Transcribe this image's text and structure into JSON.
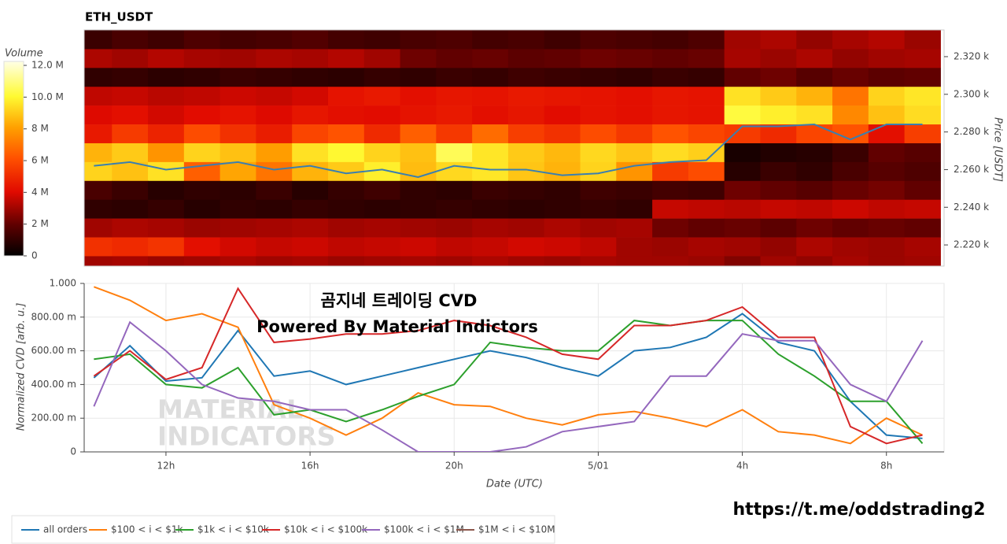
{
  "chart_data": [
    {
      "type": "heatmap",
      "title": "ETH_USDT",
      "ylabel": "Price [USDT]",
      "colorbar_title": "Volume",
      "colormap": "fire",
      "xlim": [
        9.73,
        33.6
      ],
      "ylim": [
        2208.75,
        2334.2
      ],
      "yticks": [
        {
          "value": 2220,
          "label": "2.220 k"
        },
        {
          "value": 2240,
          "label": "2.240 k"
        },
        {
          "value": 2260,
          "label": "2.260 k"
        },
        {
          "value": 2280,
          "label": "2.280 k"
        },
        {
          "value": 2300,
          "label": "2.300 k"
        },
        {
          "value": 2320,
          "label": "2.320 k"
        }
      ],
      "clim": [
        0,
        12250000
      ],
      "cticks": [
        {
          "value": 0,
          "label": "0"
        },
        {
          "value": 2000000,
          "label": "2 M"
        },
        {
          "value": 4000000,
          "label": "4 M"
        },
        {
          "value": 6000000,
          "label": "6 M"
        },
        {
          "value": 8000000,
          "label": "8 M"
        },
        {
          "value": 10000000,
          "label": "10.0 M"
        },
        {
          "value": 12000000,
          "label": "12.0 M"
        }
      ],
      "x": [
        10,
        11,
        12,
        13,
        14,
        15,
        16,
        17,
        18,
        19,
        20,
        21,
        22,
        23,
        24,
        25,
        26,
        27,
        28,
        29,
        30,
        31,
        32,
        33
      ],
      "y": [
        2329,
        2319,
        2309,
        2299,
        2289,
        2279,
        2269,
        2259,
        2249,
        2239,
        2229,
        2219,
        2209
      ],
      "z": [
        [
          1200000,
          1500000,
          1300000,
          1600000,
          1400000,
          1500000,
          1700000,
          1400000,
          1300000,
          1500000,
          1600000,
          1400000,
          1500000,
          1300000,
          1600000,
          1500000,
          1400000,
          1600000,
          3000000,
          3200000,
          2800000,
          3100000,
          3300000,
          2900000
        ],
        [
          3200000,
          3000000,
          3300000,
          3100000,
          3000000,
          3200000,
          3100000,
          3300000,
          3000000,
          2200000,
          2000000,
          2100000,
          1900000,
          2000000,
          2200000,
          2100000,
          2000000,
          2100000,
          3100000,
          2900000,
          3200000,
          2800000,
          3000000,
          3100000
        ],
        [
          1000000,
          1100000,
          900000,
          1000000,
          1200000,
          1100000,
          1000000,
          900000,
          1100000,
          1000000,
          1200000,
          1100000,
          1300000,
          1200000,
          1100000,
          1000000,
          1200000,
          1100000,
          2000000,
          2200000,
          1800000,
          2100000,
          1900000,
          2000000
        ],
        [
          3500000,
          3600000,
          3400000,
          3500000,
          3700000,
          3600000,
          3800000,
          4300000,
          4500000,
          4200000,
          4400000,
          4300000,
          4500000,
          4400000,
          4300000,
          4200000,
          4400000,
          4300000,
          9500000,
          9000000,
          8500000,
          7000000,
          9200000,
          9600000
        ],
        [
          4000000,
          4200000,
          3800000,
          4100000,
          4300000,
          4000000,
          4400000,
          4200000,
          4100000,
          4300000,
          4500000,
          4200000,
          4400000,
          4100000,
          4300000,
          4200000,
          4400000,
          4300000,
          10200000,
          9800000,
          9500000,
          7500000,
          8800000,
          9400000
        ],
        [
          4500000,
          5500000,
          4800000,
          6000000,
          5200000,
          4600000,
          5800000,
          6200000,
          5000000,
          6500000,
          5400000,
          6800000,
          5600000,
          5200000,
          6000000,
          5400000,
          6200000,
          5800000,
          5500000,
          5000000,
          5800000,
          6200000,
          4200000,
          5600000
        ],
        [
          8500000,
          9000000,
          7800000,
          9200000,
          8800000,
          8000000,
          9500000,
          10000000,
          9200000,
          8800000,
          10500000,
          9600000,
          9000000,
          8600000,
          9300000,
          8900000,
          9400000,
          9100000,
          500000,
          700000,
          800000,
          1200000,
          2000000,
          1800000
        ],
        [
          9200000,
          8800000,
          9500000,
          6500000,
          8200000,
          7000000,
          8500000,
          9000000,
          9800000,
          8700000,
          9300000,
          9600000,
          8900000,
          8500000,
          9200000,
          7800000,
          5500000,
          6000000,
          800000,
          1200000,
          1000000,
          1500000,
          1800000,
          1600000
        ],
        [
          1500000,
          1200000,
          800000,
          1000000,
          900000,
          1200000,
          800000,
          1100000,
          1300000,
          1000000,
          900000,
          1200000,
          1100000,
          1000000,
          1300000,
          1200000,
          1400000,
          1300000,
          2200000,
          2000000,
          1800000,
          2100000,
          2300000,
          2000000
        ],
        [
          1000000,
          900000,
          1100000,
          800000,
          1000000,
          900000,
          1100000,
          1000000,
          900000,
          1000000,
          1100000,
          1000000,
          900000,
          1000000,
          1100000,
          1000000,
          3600000,
          3500000,
          3400000,
          3600000,
          3500000,
          3700000,
          3500000,
          3600000
        ],
        [
          3000000,
          3200000,
          3100000,
          2900000,
          3000000,
          3100000,
          3200000,
          3000000,
          3100000,
          3000000,
          2900000,
          3100000,
          3000000,
          3200000,
          3000000,
          3100000,
          2200000,
          2000000,
          2100000,
          1900000,
          2200000,
          2000000,
          2100000,
          2000000
        ],
        [
          5200000,
          5000000,
          5300000,
          4200000,
          3800000,
          3600000,
          3700000,
          3500000,
          3600000,
          3700000,
          3500000,
          3600000,
          3800000,
          3700000,
          3500000,
          3000000,
          2900000,
          3100000,
          3000000,
          2800000,
          3200000,
          3000000,
          2900000,
          3100000
        ],
        [
          3000000,
          3100000,
          2900000,
          3000000,
          3200000,
          3000000,
          3100000,
          2900000,
          3000000,
          3100000,
          3000000,
          3200000,
          3000000,
          2900000,
          3100000,
          3000000,
          3000000,
          2900000,
          2500000,
          3000000,
          2800000,
          3100000,
          2900000,
          3000000
        ]
      ],
      "line": {
        "color": "#3a7fb0",
        "values": [
          2262,
          2264,
          2260,
          2262,
          2264,
          2260,
          2262,
          2258,
          2260,
          2256,
          2262,
          2260,
          2260,
          2257,
          2258,
          2262,
          2264,
          2265,
          2283,
          2283,
          2284,
          2276,
          2284,
          2284
        ]
      }
    },
    {
      "type": "line",
      "xlabel": "Date (UTC)",
      "ylabel": "Normalized CVD [arb. u.]",
      "annotations": [
        "곰지네 트레이딩 CVD",
        "Powered By Material Indictors"
      ],
      "watermark": [
        "MATERIAL",
        "INDICATORS"
      ],
      "xlim": [
        9.73,
        33.6
      ],
      "ylim": [
        0,
        1
      ],
      "grid": true,
      "xticks": [
        {
          "value": 12,
          "label": "12h"
        },
        {
          "value": 16,
          "label": "16h"
        },
        {
          "value": 20,
          "label": "20h"
        },
        {
          "value": 24,
          "label": "5/01"
        },
        {
          "value": 28,
          "label": "4h"
        },
        {
          "value": 32,
          "label": "8h"
        }
      ],
      "yticks": [
        0,
        {
          "value": 0.2,
          "label": "200.00 m"
        },
        {
          "value": 0.4,
          "label": "400.00 m"
        },
        {
          "value": 0.6,
          "label": "600.00 m"
        },
        {
          "value": 0.8,
          "label": "800.00 m"
        },
        {
          "value": 1,
          "label": "1.000"
        }
      ],
      "x": [
        10,
        11,
        12,
        13,
        14,
        15,
        16,
        17,
        18,
        19,
        20,
        21,
        22,
        23,
        24,
        25,
        26,
        27,
        28,
        29,
        30,
        31,
        32,
        33
      ],
      "series": [
        {
          "name": "all orders",
          "color": "#1f77b4",
          "values": [
            0.44,
            0.63,
            0.42,
            0.44,
            0.72,
            0.45,
            0.48,
            0.4,
            0.45,
            0.5,
            0.55,
            0.6,
            0.56,
            0.5,
            0.45,
            0.6,
            0.62,
            0.68,
            0.82,
            0.65,
            0.6,
            0.3,
            0.1,
            0.08
          ]
        },
        {
          "name": "$100 < i < $1k",
          "color": "#ff7f0e",
          "values": [
            0.98,
            0.9,
            0.78,
            0.82,
            0.74,
            0.28,
            0.2,
            0.1,
            0.2,
            0.35,
            0.28,
            0.27,
            0.2,
            0.16,
            0.22,
            0.24,
            0.2,
            0.15,
            0.25,
            0.12,
            0.1,
            0.05,
            0.2,
            0.1
          ]
        },
        {
          "name": "$1k < i < $10k",
          "color": "#2ca02c",
          "values": [
            0.55,
            0.58,
            0.4,
            0.38,
            0.5,
            0.22,
            0.25,
            0.18,
            0.25,
            0.33,
            0.4,
            0.65,
            0.62,
            0.6,
            0.6,
            0.78,
            0.75,
            0.78,
            0.78,
            0.58,
            0.45,
            0.3,
            0.3,
            0.05
          ]
        },
        {
          "name": "$10k < i < $100k",
          "color": "#d62728",
          "values": [
            0.45,
            0.6,
            0.43,
            0.5,
            0.97,
            0.65,
            0.67,
            0.7,
            0.7,
            0.72,
            0.78,
            0.75,
            0.68,
            0.58,
            0.55,
            0.75,
            0.75,
            0.78,
            0.86,
            0.68,
            0.68,
            0.15,
            0.05,
            0.1
          ]
        },
        {
          "name": "$100k < i < $1M",
          "color": "#9467bd",
          "values": [
            0.27,
            0.77,
            0.6,
            0.4,
            0.32,
            0.3,
            0.25,
            0.25,
            0.13,
            0,
            0,
            0,
            0.03,
            0.12,
            0.15,
            0.18,
            0.45,
            0.45,
            0.7,
            0.66,
            0.66,
            0.4,
            0.3,
            0.66
          ]
        },
        {
          "name": "$1M < i < $10M",
          "color": "#8c564b",
          "values": [
            null,
            null,
            null,
            null,
            null,
            null,
            null,
            null,
            null,
            null,
            null,
            null,
            null,
            null,
            null,
            null,
            null,
            null,
            null,
            null,
            null,
            null,
            null,
            null
          ]
        }
      ]
    }
  ],
  "link": "https://t.me/oddstrading2"
}
